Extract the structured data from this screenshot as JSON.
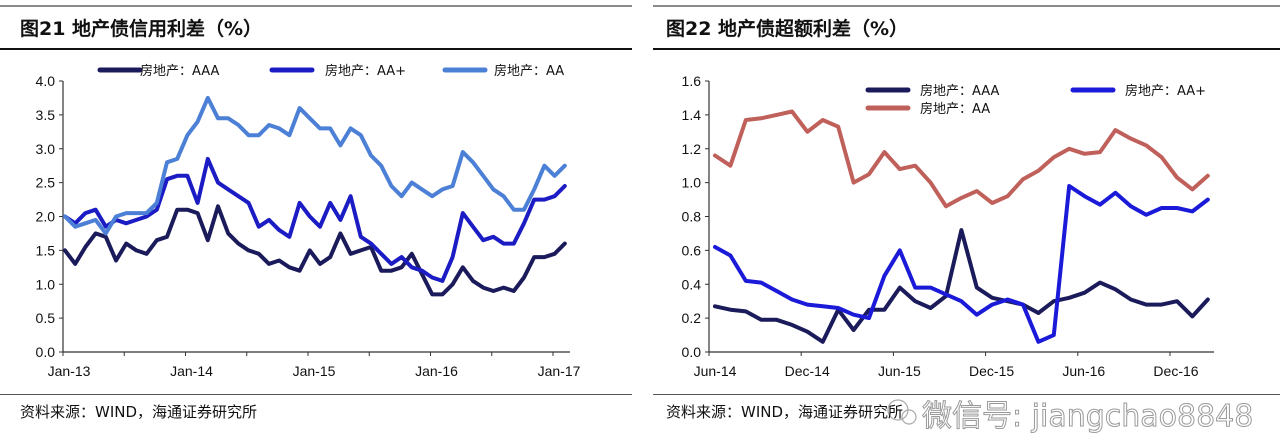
{
  "panels": [
    {
      "title": "图21 地产债信用利差（%）",
      "source": "资料来源：WIND，海通证券研究所"
    },
    {
      "title": "图22 地产债超额利差（%）",
      "source": "资料来源：WIND，海通证券研究所"
    }
  ],
  "watermark": "微信号: jiangchao8848",
  "chart_data": [
    {
      "type": "line",
      "title": "图21 地产债信用利差（%）",
      "xlabel": "",
      "ylabel": "",
      "x_start": "Jan-13",
      "x_frequency": "monthly",
      "xticks": [
        "Jan-13",
        "Jan-14",
        "Jan-15",
        "Jan-16",
        "Jan-17"
      ],
      "yticks": [
        "0.0",
        "0.5",
        "1.0",
        "1.5",
        "2.0",
        "2.5",
        "3.0",
        "3.5",
        "4.0"
      ],
      "ylim": [
        0,
        4
      ],
      "legend": "top",
      "series": [
        {
          "name": "房地产：AAA",
          "color": "#1b1b5c",
          "values": [
            1.5,
            1.3,
            1.55,
            1.75,
            1.7,
            1.35,
            1.6,
            1.5,
            1.45,
            1.65,
            1.7,
            2.1,
            2.1,
            2.05,
            1.65,
            2.15,
            1.75,
            1.6,
            1.5,
            1.45,
            1.3,
            1.35,
            1.25,
            1.2,
            1.5,
            1.3,
            1.4,
            1.75,
            1.45,
            1.5,
            1.55,
            1.2,
            1.2,
            1.25,
            1.45,
            1.15,
            0.85,
            0.85,
            1.0,
            1.25,
            1.05,
            0.95,
            0.9,
            0.95,
            0.9,
            1.1,
            1.4,
            1.4,
            1.45,
            1.6
          ]
        },
        {
          "name": "房地产：AA+",
          "color": "#1c1cc4",
          "values": [
            2.0,
            1.9,
            2.05,
            2.1,
            1.85,
            1.95,
            1.9,
            1.95,
            2.0,
            2.1,
            2.55,
            2.6,
            2.6,
            2.2,
            2.85,
            2.5,
            2.4,
            2.3,
            2.2,
            1.85,
            1.95,
            1.8,
            1.7,
            2.2,
            2.0,
            1.85,
            2.2,
            1.95,
            2.3,
            1.7,
            1.6,
            1.45,
            1.3,
            1.4,
            1.25,
            1.2,
            1.1,
            1.05,
            1.4,
            2.05,
            1.85,
            1.65,
            1.7,
            1.6,
            1.6,
            1.9,
            2.25,
            2.25,
            2.3,
            2.45
          ]
        },
        {
          "name": "房地产：AA",
          "color": "#4b80d6",
          "values": [
            2.0,
            1.85,
            1.9,
            1.95,
            1.75,
            2.0,
            2.05,
            2.05,
            2.05,
            2.2,
            2.8,
            2.85,
            3.2,
            3.4,
            3.75,
            3.45,
            3.45,
            3.35,
            3.2,
            3.2,
            3.35,
            3.3,
            3.2,
            3.6,
            3.45,
            3.3,
            3.3,
            3.05,
            3.3,
            3.2,
            2.9,
            2.75,
            2.45,
            2.3,
            2.5,
            2.4,
            2.3,
            2.4,
            2.45,
            2.95,
            2.8,
            2.6,
            2.4,
            2.3,
            2.1,
            2.1,
            2.4,
            2.75,
            2.6,
            2.75
          ]
        }
      ]
    },
    {
      "type": "line",
      "title": "图22 地产债超额利差（%）",
      "xlabel": "",
      "ylabel": "",
      "x_start": "Jun-14",
      "x_frequency": "monthly",
      "xticks": [
        "Jun-14",
        "Dec-14",
        "Jun-15",
        "Dec-15",
        "Jun-16",
        "Dec-16"
      ],
      "yticks": [
        "0.0",
        "0.2",
        "0.4",
        "0.6",
        "0.8",
        "1.0",
        "1.2",
        "1.4",
        "1.6"
      ],
      "ylim": [
        0,
        1.6
      ],
      "legend": "top-right",
      "series": [
        {
          "name": "房地产：AAA",
          "color": "#1b1b5c",
          "values": [
            0.27,
            0.25,
            0.24,
            0.19,
            0.19,
            0.16,
            0.12,
            0.06,
            0.25,
            0.13,
            0.25,
            0.25,
            0.38,
            0.3,
            0.26,
            0.33,
            0.72,
            0.38,
            0.32,
            0.3,
            0.28,
            0.23,
            0.3,
            0.32,
            0.35,
            0.41,
            0.37,
            0.31,
            0.28,
            0.28,
            0.3,
            0.21,
            0.31
          ]
        },
        {
          "name": "房地产：AA+",
          "color": "#1a1ad8",
          "values": [
            0.62,
            0.57,
            0.42,
            0.41,
            0.36,
            0.31,
            0.28,
            0.27,
            0.26,
            0.22,
            0.2,
            0.45,
            0.6,
            0.38,
            0.38,
            0.34,
            0.3,
            0.22,
            0.28,
            0.31,
            0.28,
            0.06,
            0.1,
            0.98,
            0.92,
            0.87,
            0.94,
            0.86,
            0.81,
            0.85,
            0.85,
            0.83,
            0.9
          ]
        },
        {
          "name": "房地产：AA",
          "color": "#c0605b",
          "values": [
            1.16,
            1.1,
            1.37,
            1.38,
            1.4,
            1.42,
            1.3,
            1.37,
            1.33,
            1.0,
            1.05,
            1.18,
            1.08,
            1.1,
            1.0,
            0.86,
            0.91,
            0.95,
            0.88,
            0.92,
            1.02,
            1.07,
            1.15,
            1.2,
            1.17,
            1.18,
            1.31,
            1.26,
            1.22,
            1.15,
            1.03,
            0.96,
            1.04
          ]
        }
      ]
    }
  ]
}
